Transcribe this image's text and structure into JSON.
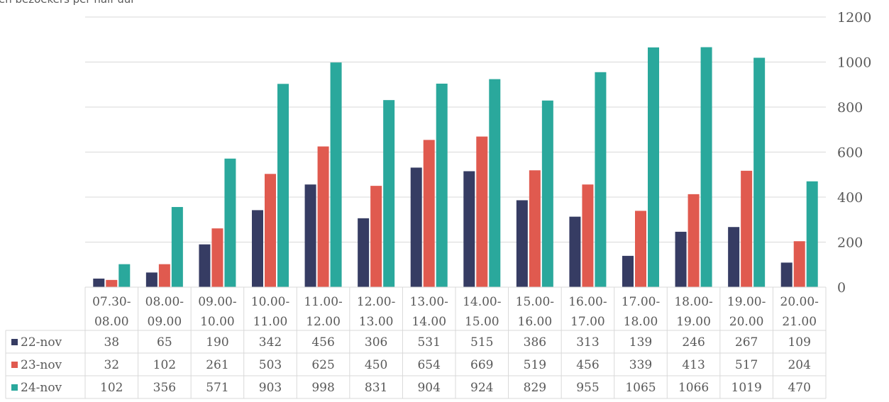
{
  "chart_data": {
    "type": "bar",
    "title": "",
    "title_partial": "en bezoekers per half uur",
    "categories": [
      [
        "07.30-",
        "08.00"
      ],
      [
        "08.00-",
        "09.00"
      ],
      [
        "09.00-",
        "10.00"
      ],
      [
        "10.00-",
        "11.00"
      ],
      [
        "11.00-",
        "12.00"
      ],
      [
        "12.00-",
        "13.00"
      ],
      [
        "13.00-",
        "14.00"
      ],
      [
        "14.00-",
        "15.00"
      ],
      [
        "15.00-",
        "16.00"
      ],
      [
        "16.00-",
        "17.00"
      ],
      [
        "17.00-",
        "18.00"
      ],
      [
        "18.00-",
        "19.00"
      ],
      [
        "19.00-",
        "20.00"
      ],
      [
        "20.00-",
        "21.00"
      ]
    ],
    "series": [
      {
        "name": "22-nov",
        "color": "#363c63",
        "values": [
          38,
          65,
          190,
          342,
          456,
          306,
          531,
          515,
          386,
          313,
          139,
          246,
          267,
          109
        ]
      },
      {
        "name": "23-nov",
        "color": "#e05a4f",
        "values": [
          32,
          102,
          261,
          503,
          625,
          450,
          654,
          669,
          519,
          456,
          339,
          413,
          517,
          204
        ]
      },
      {
        "name": "24-nov",
        "color": "#2aa89c",
        "values": [
          102,
          356,
          571,
          903,
          998,
          831,
          904,
          924,
          829,
          955,
          1065,
          1066,
          1019,
          470
        ]
      }
    ],
    "yticks": [
      0,
      200,
      400,
      600,
      800,
      1000,
      1200
    ],
    "ylim": [
      0,
      1200
    ],
    "yaxis_side": "right",
    "grid": true,
    "legend": "data-table"
  }
}
